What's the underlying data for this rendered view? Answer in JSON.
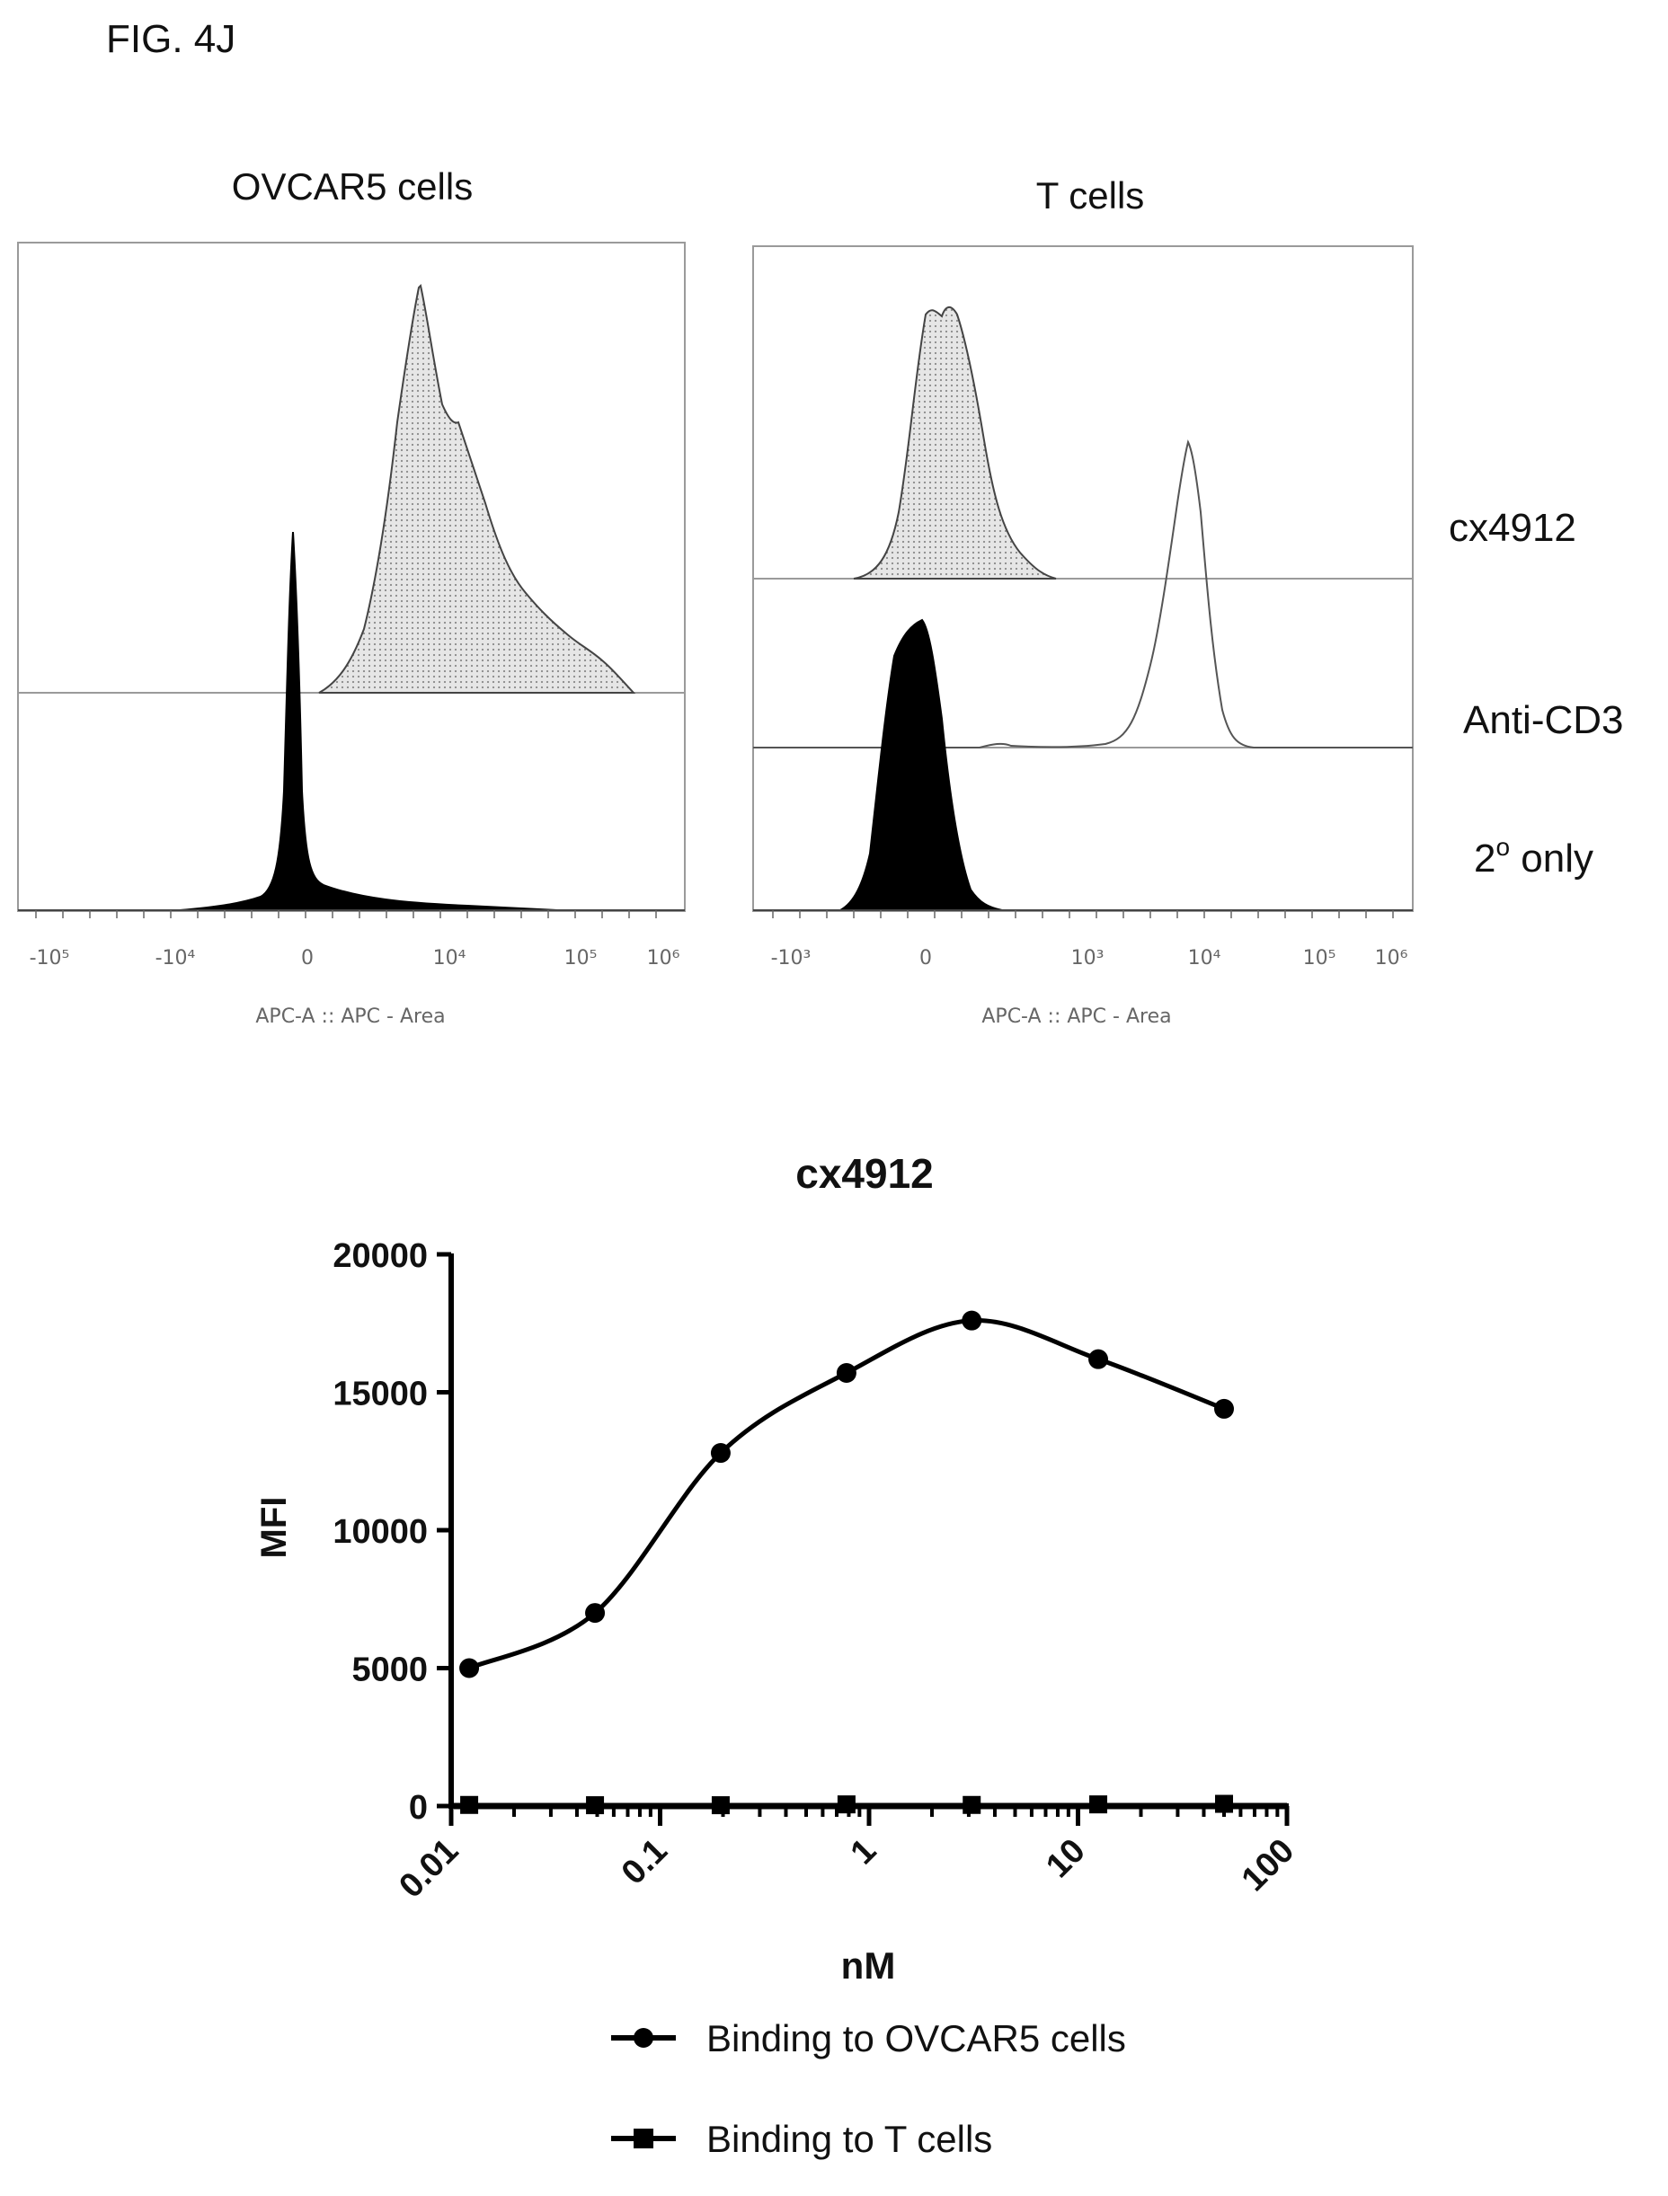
{
  "figure_label": "FIG. 4J",
  "flow_panels": [
    {
      "title": "OVCAR5 cells",
      "x_label": "APC-A :: APC - Area",
      "ticks": [
        "-10⁵",
        "-10⁴",
        "0",
        "10⁴",
        "10⁵",
        "10⁶"
      ]
    },
    {
      "title": "T cells",
      "x_label": "APC-A :: APC - Area",
      "ticks": [
        "-10³",
        "0",
        "10³",
        "10⁴",
        "10⁵",
        "10⁶"
      ]
    }
  ],
  "series_labels": {
    "cx4912": "cx4912",
    "anti_cd3": "Anti-CD3",
    "secondary_base": "2",
    "secondary_sup": "o",
    "secondary_rest": " only"
  },
  "chart_data": {
    "type": "scatter",
    "title": "cx4912",
    "xlabel": "nM",
    "ylabel": "MFI",
    "x_scale": "log",
    "xlim": [
      0.01,
      100
    ],
    "ylim": [
      0,
      20000
    ],
    "x_ticks": [
      "0.01",
      "0.1",
      "1",
      "10",
      "100"
    ],
    "y_ticks": [
      "0",
      "5000",
      "10000",
      "15000",
      "20000"
    ],
    "grid": false,
    "legend_position": "bottom",
    "series": [
      {
        "name": "Binding to OVCAR5 cells",
        "marker": "circle",
        "x": [
          0.0122,
          0.0488,
          0.195,
          0.78,
          3.1,
          12.5,
          50
        ],
        "y": [
          5000,
          7000,
          12800,
          15700,
          17600,
          16200,
          14400
        ]
      },
      {
        "name": "Binding to T cells",
        "marker": "square",
        "x": [
          0.0122,
          0.0488,
          0.195,
          0.78,
          3.1,
          12.5,
          50
        ],
        "y": [
          40,
          30,
          30,
          60,
          40,
          60,
          80
        ]
      }
    ]
  }
}
